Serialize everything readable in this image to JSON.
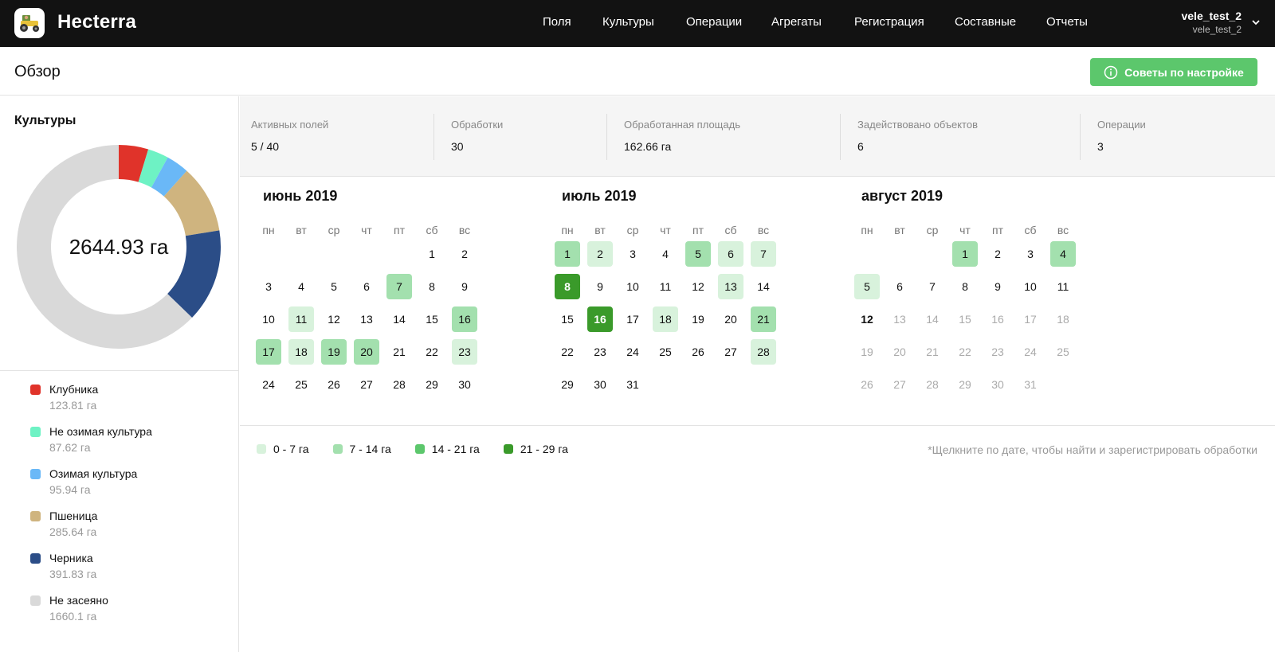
{
  "app": {
    "name": "Hecterra"
  },
  "nav": {
    "items": [
      "Поля",
      "Культуры",
      "Операции",
      "Агрегаты",
      "Регистрация",
      "Составные",
      "Отчеты"
    ]
  },
  "user": {
    "name": "vele_test_2",
    "account": "vele_test_2"
  },
  "header": {
    "title": "Обзор",
    "tips_button": "Советы по настройке"
  },
  "crops": {
    "title": "Культуры",
    "total": "2644.93 га",
    "items": [
      {
        "name": "Клубника",
        "value": "123.81 га",
        "ha": 123.81,
        "color": "#e0332a"
      },
      {
        "name": "Не озимая культура",
        "value": "87.62 га",
        "ha": 87.62,
        "color": "#6ef2c4"
      },
      {
        "name": "Озимая культура",
        "value": "95.94 га",
        "ha": 95.94,
        "color": "#6ab8f7"
      },
      {
        "name": "Пшеница",
        "value": "285.64 га",
        "ha": 285.64,
        "color": "#cfb47f"
      },
      {
        "name": "Черника",
        "value": "391.83 га",
        "ha": 391.83,
        "color": "#2b4d87"
      },
      {
        "name": "Не засеяно",
        "value": "1660.1 га",
        "ha": 1660.1,
        "color": "#d9d9d9"
      }
    ]
  },
  "stats": [
    {
      "label": "Активных полей",
      "value": "5 / 40"
    },
    {
      "label": "Обработки",
      "value": "30"
    },
    {
      "label": "Обработанная площадь",
      "value": "162.66 га"
    },
    {
      "label": "Задействовано объектов",
      "value": "6"
    },
    {
      "label": "Операции",
      "value": "3"
    }
  ],
  "weekdays": [
    "пн",
    "вт",
    "ср",
    "чт",
    "пт",
    "сб",
    "вс"
  ],
  "months": [
    {
      "title": "июнь 2019",
      "start_offset": 5,
      "days": 30,
      "levels": {
        "7": 2,
        "11": 1,
        "16": 2,
        "17": 2,
        "18": 1,
        "19": 2,
        "20": 2,
        "23": 1
      },
      "today": null,
      "future_from": null
    },
    {
      "title": "июль 2019",
      "start_offset": 0,
      "days": 31,
      "levels": {
        "1": 2,
        "2": 1,
        "5": 2,
        "6": 1,
        "7": 1,
        "8": 4,
        "13": 1,
        "16": 4,
        "18": 1,
        "21": 2,
        "28": 1
      },
      "today": null,
      "future_from": null
    },
    {
      "title": "август 2019",
      "start_offset": 3,
      "days": 31,
      "levels": {
        "1": 2,
        "4": 2,
        "5": 1
      },
      "today": 12,
      "future_from": 13
    }
  ],
  "scale": [
    {
      "label": "0 - 7 га",
      "color": "#d8f2dc"
    },
    {
      "label": "7 - 14 га",
      "color": "#a3e0ae"
    },
    {
      "label": "14 - 21 га",
      "color": "#5cc76c"
    },
    {
      "label": "21 - 29 га",
      "color": "#3a9a2a"
    }
  ],
  "hint": "*Щелкните по дате, чтобы найти и зарегистрировать обработки"
}
